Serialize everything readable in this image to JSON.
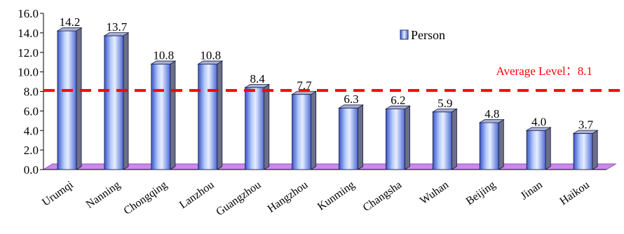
{
  "chart_data": {
    "type": "bar",
    "categories": [
      "Urumqi",
      "Nanning",
      "Chongqing",
      "Lanzhou",
      "Guangzhou",
      "Hangzhou",
      "Kunming",
      "Changsha",
      "Wuhan",
      "Beijing",
      "Jinan",
      "Haikou"
    ],
    "series": [
      {
        "name": "Person",
        "values": [
          14.2,
          13.7,
          10.8,
          10.8,
          8.4,
          7.7,
          6.3,
          6.2,
          5.9,
          4.8,
          4.0,
          3.7
        ]
      }
    ],
    "data_labels": [
      "14.2",
      "13.7",
      "10.8",
      "10.8",
      "8.4",
      "7.7",
      "6.3",
      "6.2",
      "5.9",
      "4.8",
      "4.0",
      "3.7"
    ],
    "y_ticks": [
      "0.0",
      "2.0",
      "4.0",
      "6.0",
      "8.0",
      "10.0",
      "12.0",
      "14.0",
      "16.0"
    ],
    "ylim": [
      0,
      16
    ],
    "average": {
      "label": "Average Level：8.1",
      "value": 8.1,
      "color": "#ff0000"
    },
    "legend": {
      "label": "Person",
      "placement": "top-right"
    },
    "colors": {
      "bar_light": "#dbe8ff",
      "bar_mid": "#7b9cf5",
      "bar_dark": "#3a56c8",
      "bar_side": "#6b6f8a",
      "bar_top": "#a8b2d8",
      "floor": "#cc88ee",
      "floor_edge": "#8a4fb0"
    },
    "title": "",
    "xlabel": "",
    "ylabel": ""
  }
}
